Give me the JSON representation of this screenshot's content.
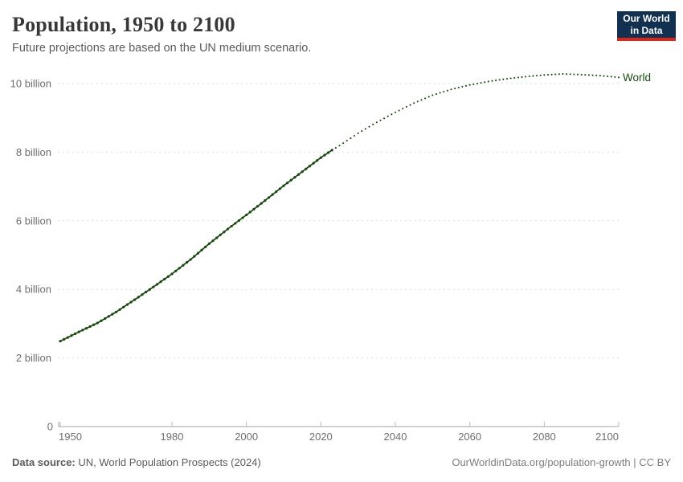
{
  "header": {
    "title": "Population, 1950 to 2100",
    "subtitle": "Future projections are based on the UN medium scenario.",
    "logo": {
      "line1": "Our World",
      "line2": "in Data"
    }
  },
  "footer": {
    "source_label": "Data source:",
    "source_text": "UN, World Population Prospects (2024)",
    "credit": "OurWorldinData.org/population-growth | CC BY"
  },
  "colors": {
    "line": "#18470F",
    "grid": "#dcdcdc",
    "axis": "#a0a0a0",
    "tick_mark": "#b8b8b8",
    "tick_text": "#6e6e6e",
    "title": "#383838",
    "subtitle": "#5a5a5a",
    "footer": "#5b5b5b",
    "footer_right": "#7d7d7d",
    "logo_bg": "#12304f",
    "logo_stripe": "#d7281d"
  },
  "chart_data": {
    "type": "line",
    "title": "Population, 1950 to 2100",
    "subtitle": "Future projections are based on the UN medium scenario.",
    "unit": "billion people",
    "xlim": [
      1950,
      2100
    ],
    "ylim": [
      0,
      10.45
    ],
    "grid": true,
    "legend_position": "right-of-line-end",
    "x_ticks": [
      1950,
      1980,
      2000,
      2020,
      2040,
      2060,
      2080,
      2100
    ],
    "y_ticks": [
      {
        "value": 0,
        "label": "0"
      },
      {
        "value": 2,
        "label": "2 billion"
      },
      {
        "value": 4,
        "label": "4 billion"
      },
      {
        "value": 6,
        "label": "6 billion"
      },
      {
        "value": 8,
        "label": "8 billion"
      },
      {
        "value": 10,
        "label": "10 billion"
      }
    ],
    "series": [
      {
        "name": "World",
        "color": "#18470F",
        "projection_start_year": 2023,
        "style_historical": "solid-with-markers",
        "style_projection": "dotted",
        "points": [
          [
            1950,
            2.49
          ],
          [
            1955,
            2.76
          ],
          [
            1960,
            3.02
          ],
          [
            1965,
            3.34
          ],
          [
            1970,
            3.7
          ],
          [
            1975,
            4.07
          ],
          [
            1980,
            4.45
          ],
          [
            1985,
            4.87
          ],
          [
            1990,
            5.33
          ],
          [
            1995,
            5.76
          ],
          [
            2000,
            6.17
          ],
          [
            2005,
            6.59
          ],
          [
            2010,
            7.02
          ],
          [
            2015,
            7.43
          ],
          [
            2020,
            7.84
          ],
          [
            2023,
            8.06
          ],
          [
            2025,
            8.19
          ],
          [
            2030,
            8.55
          ],
          [
            2035,
            8.87
          ],
          [
            2040,
            9.16
          ],
          [
            2045,
            9.43
          ],
          [
            2050,
            9.66
          ],
          [
            2055,
            9.83
          ],
          [
            2060,
            9.96
          ],
          [
            2065,
            10.06
          ],
          [
            2070,
            10.14
          ],
          [
            2075,
            10.2
          ],
          [
            2080,
            10.25
          ],
          [
            2085,
            10.28
          ],
          [
            2090,
            10.26
          ],
          [
            2095,
            10.23
          ],
          [
            2100,
            10.18
          ]
        ]
      }
    ]
  }
}
